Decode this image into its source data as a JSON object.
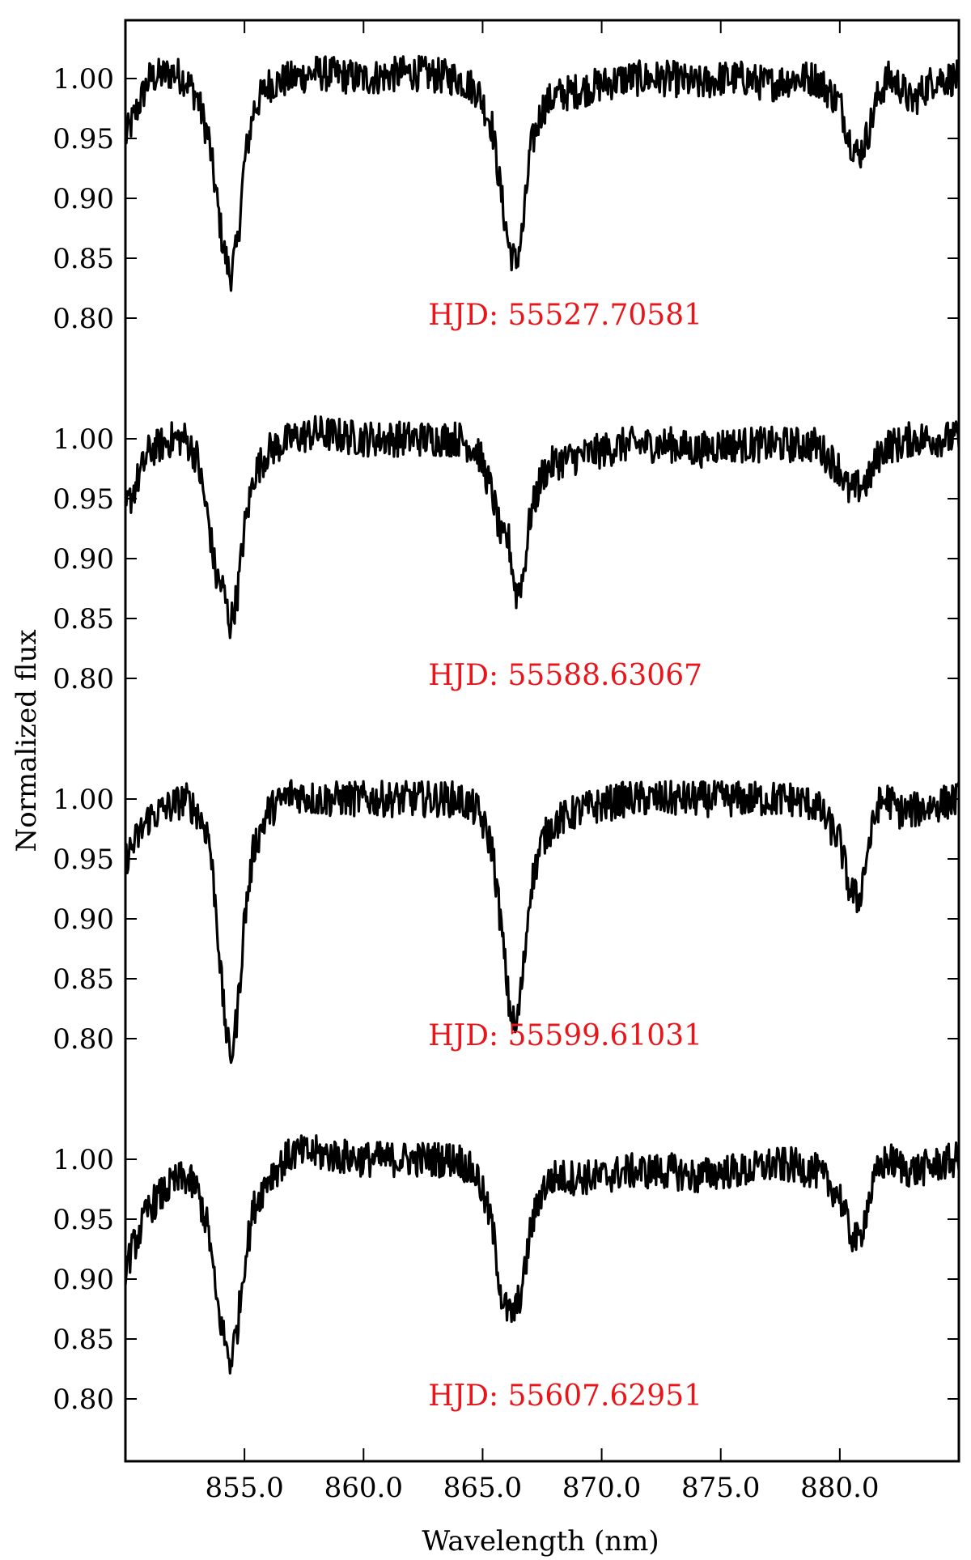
{
  "chart_data": {
    "type": "line",
    "xlabel": "Wavelength (nm)",
    "ylabel": "Normalized flux",
    "xlim": [
      850.0,
      885.0
    ],
    "x_ticks": [
      "855.0",
      "860.0",
      "865.0",
      "870.0",
      "875.0",
      "880.0"
    ],
    "y_ticks": [
      "1.00",
      "0.95",
      "0.90",
      "0.85",
      "0.80"
    ],
    "panel_ylim": [
      0.78,
      1.05
    ],
    "line_color": "#000000",
    "annotation_color": "#e8151b",
    "series": [
      {
        "name": "HJD: 55527.70581",
        "x": [
          850.0,
          851.0,
          852.0,
          852.5,
          853.0,
          853.5,
          853.8,
          854.1,
          854.4,
          854.7,
          855.0,
          855.4,
          856.0,
          857.0,
          858.0,
          860.0,
          862.0,
          864.0,
          864.8,
          865.4,
          865.8,
          866.1,
          866.4,
          866.7,
          867.0,
          867.5,
          868.0,
          869.0,
          870.0,
          871.0,
          872.0,
          873.0,
          874.0,
          875.0,
          876.0,
          877.0,
          878.0,
          879.0,
          880.0,
          880.4,
          880.8,
          881.2,
          881.6,
          882.0,
          882.5,
          883.0,
          884.0,
          885.0
        ],
        "values": [
          0.95,
          1.0,
          1.005,
          1.0,
          0.985,
          0.95,
          0.905,
          0.86,
          0.835,
          0.86,
          0.93,
          0.975,
          0.995,
          1.0,
          1.005,
          1.0,
          1.005,
          1.0,
          0.99,
          0.96,
          0.9,
          0.86,
          0.845,
          0.875,
          0.94,
          0.975,
          0.985,
          0.99,
          0.995,
          1.0,
          1.0,
          1.0,
          0.995,
          1.0,
          1.0,
          0.995,
          1.0,
          1.0,
          0.98,
          0.95,
          0.935,
          0.955,
          0.985,
          1.0,
          0.995,
          0.98,
          1.0,
          1.0
        ]
      },
      {
        "name": "HJD: 55588.63067",
        "x": [
          850.0,
          851.0,
          852.0,
          852.5,
          853.0,
          853.5,
          853.8,
          854.1,
          854.4,
          854.7,
          855.0,
          855.4,
          856.0,
          857.0,
          858.0,
          860.0,
          862.0,
          864.0,
          864.8,
          865.4,
          865.8,
          866.1,
          866.4,
          866.7,
          867.0,
          867.5,
          868.0,
          869.0,
          870.0,
          871.0,
          872.0,
          873.0,
          874.0,
          875.0,
          876.0,
          877.0,
          878.0,
          879.0,
          880.0,
          880.4,
          880.8,
          881.2,
          881.6,
          882.0,
          882.5,
          883.0,
          884.0,
          885.0
        ],
        "values": [
          0.94,
          0.99,
          1.0,
          1.0,
          0.985,
          0.93,
          0.885,
          0.875,
          0.845,
          0.87,
          0.925,
          0.97,
          0.99,
          1.0,
          1.005,
          1.0,
          1.0,
          1.0,
          0.99,
          0.955,
          0.915,
          0.915,
          0.87,
          0.885,
          0.935,
          0.97,
          0.98,
          0.985,
          0.99,
          0.995,
          0.995,
          0.995,
          0.99,
          0.995,
          0.995,
          0.995,
          0.995,
          0.995,
          0.975,
          0.955,
          0.96,
          0.965,
          0.985,
          0.995,
          0.995,
          1.0,
          1.0,
          1.0
        ]
      },
      {
        "name": "HJD: 55599.61031",
        "x": [
          850.0,
          851.0,
          852.0,
          852.5,
          853.0,
          853.5,
          853.8,
          854.1,
          854.4,
          854.7,
          855.0,
          855.4,
          856.0,
          857.0,
          858.0,
          860.0,
          862.0,
          864.0,
          864.8,
          865.4,
          865.8,
          866.1,
          866.4,
          866.7,
          867.0,
          867.5,
          868.0,
          869.0,
          870.0,
          871.0,
          872.0,
          873.0,
          874.0,
          875.0,
          876.0,
          877.0,
          878.0,
          879.0,
          880.0,
          880.4,
          880.8,
          881.2,
          881.6,
          882.0,
          882.5,
          883.0,
          884.0,
          885.0
        ],
        "values": [
          0.95,
          0.985,
          0.995,
          1.0,
          0.99,
          0.97,
          0.91,
          0.83,
          0.78,
          0.82,
          0.9,
          0.96,
          0.99,
          1.005,
          1.0,
          1.0,
          1.0,
          1.0,
          0.99,
          0.96,
          0.89,
          0.83,
          0.805,
          0.855,
          0.925,
          0.965,
          0.98,
          0.99,
          0.995,
          1.0,
          1.0,
          1.0,
          1.0,
          1.0,
          1.0,
          1.0,
          1.0,
          0.995,
          0.965,
          0.925,
          0.915,
          0.96,
          0.995,
          1.0,
          0.99,
          0.99,
          0.995,
          1.0
        ]
      },
      {
        "name": "HJD: 55607.62951",
        "x": [
          850.0,
          851.0,
          852.0,
          852.5,
          853.0,
          853.5,
          853.8,
          854.1,
          854.4,
          854.7,
          855.0,
          855.4,
          856.0,
          857.0,
          858.0,
          860.0,
          862.0,
          864.0,
          864.8,
          865.4,
          865.8,
          866.1,
          866.4,
          866.7,
          867.0,
          867.5,
          868.0,
          869.0,
          870.0,
          871.0,
          872.0,
          873.0,
          874.0,
          875.0,
          876.0,
          877.0,
          878.0,
          879.0,
          880.0,
          880.4,
          880.8,
          881.2,
          881.6,
          882.0,
          882.5,
          883.0,
          884.0,
          885.0
        ],
        "values": [
          0.91,
          0.96,
          0.98,
          0.985,
          0.975,
          0.94,
          0.885,
          0.855,
          0.83,
          0.86,
          0.915,
          0.96,
          0.985,
          1.005,
          1.005,
          1.0,
          1.0,
          1.0,
          0.985,
          0.945,
          0.885,
          0.87,
          0.875,
          0.895,
          0.94,
          0.975,
          0.985,
          0.985,
          0.985,
          0.99,
          0.99,
          0.99,
          0.985,
          0.99,
          0.99,
          0.995,
          0.995,
          0.99,
          0.97,
          0.94,
          0.93,
          0.965,
          0.99,
          1.0,
          0.995,
          0.99,
          0.995,
          1.0
        ]
      }
    ]
  }
}
